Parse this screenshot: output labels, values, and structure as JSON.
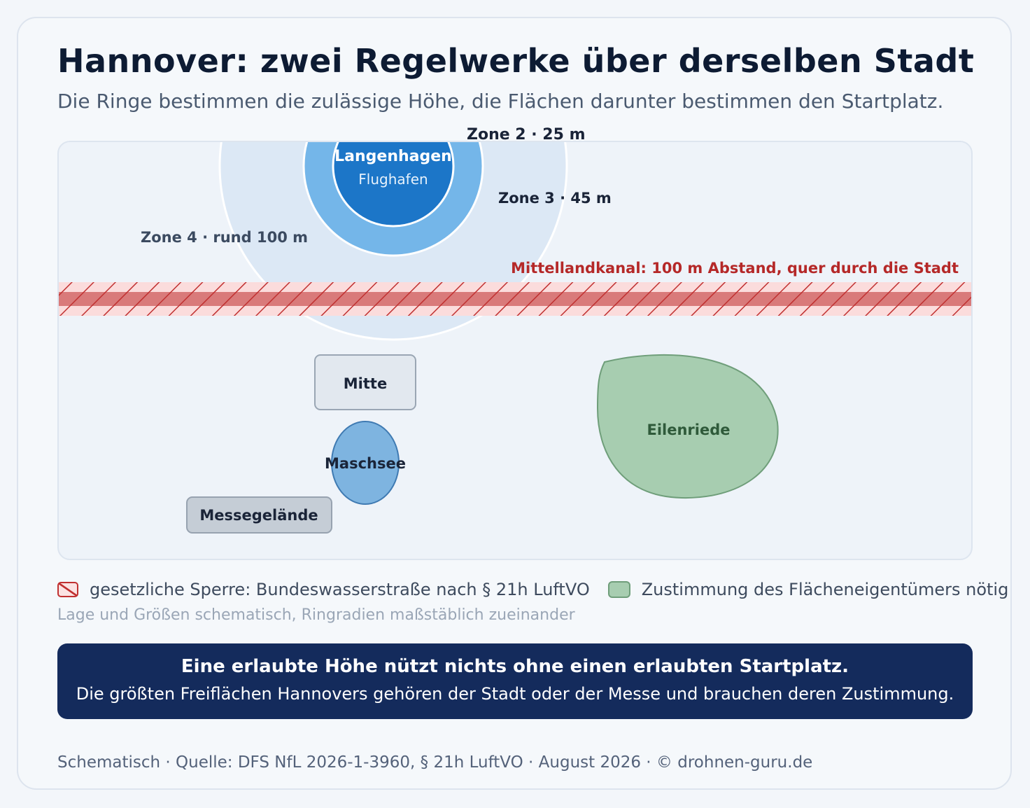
{
  "header": {
    "title": "Hannover: zwei Regelwerke über derselben Stadt",
    "subtitle": "Die Ringe bestimmen die zulässige Höhe, die Flächen darunter bestimmen den Startplatz."
  },
  "map": {
    "airport": {
      "name": "Langenhagen",
      "label": "Flughafen"
    },
    "zones": {
      "zone2": "Zone 2 · 25 m",
      "zone3": "Zone 3 · 45 m",
      "zone4": "Zone 4 · rund 100 m"
    },
    "canal": {
      "label": "Mittellandkanal: 100 m Abstand, quer durch die Stadt"
    },
    "areas": {
      "mitte": "Mitte",
      "maschsee": "Maschsee",
      "messe": "Messegelände",
      "eilenriede": "Eilenriede"
    }
  },
  "colors": {
    "restriction": "#c03030",
    "consent": "#a7cdb0",
    "airport_core": "#1c76c8",
    "callout_bg": "#142b5c"
  },
  "legend": {
    "restriction": "gesetzliche Sperre: Bundeswasserstraße nach § 21h LuftVO",
    "consent": "Zustimmung des Flächeneigentümers nötig"
  },
  "note": "Lage und Größen schematisch, Ringradien maßstäblich zueinander",
  "callout": {
    "headline": "Eine erlaubte Höhe nützt nichts ohne einen erlaubten Startplatz.",
    "body": "Die größten Freiflächen Hannovers gehören der Stadt oder der Messe und brauchen deren Zustimmung."
  },
  "footer": "Schematisch · Quelle: DFS NfL 2026-1-3960, § 21h LuftVO · August 2026 · © drohnen-guru.de"
}
